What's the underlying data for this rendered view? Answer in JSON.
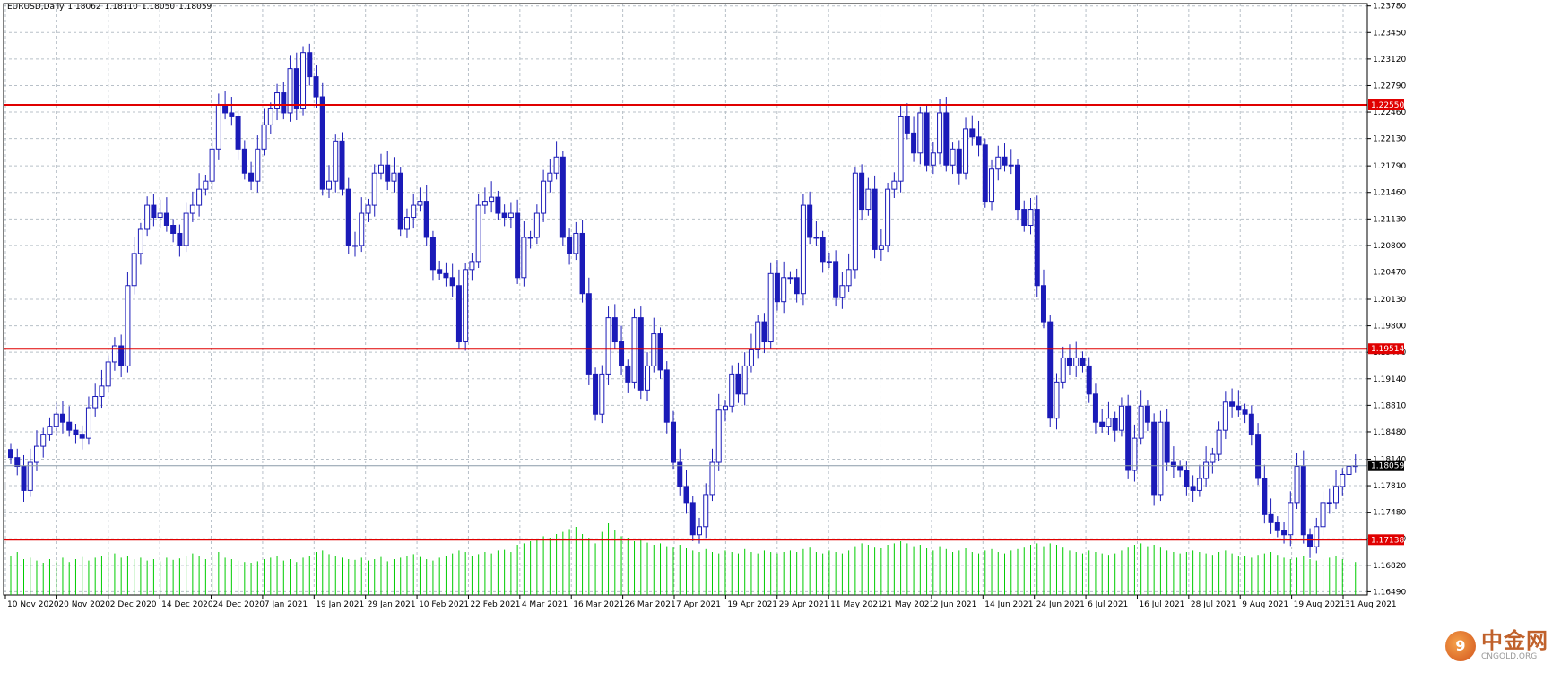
{
  "header": {
    "symbol": "EURUSD,Daily",
    "open": "1.18062",
    "high": "1.18110",
    "low": "1.18050",
    "close": "1.18059"
  },
  "watermark": {
    "logo_glyph": "9",
    "brand": "中金网",
    "url": "CNGOLD.ORG"
  },
  "colors": {
    "background": "#ffffff",
    "grid": "#b8c0c8",
    "candle": "#1b1bb8",
    "bear_candle": "#1b1bb8",
    "bull_candle_fill": "#ffffff",
    "volume": "#00cc00",
    "level_line": "#e00000",
    "level_label_bg": "#e00000",
    "price_label_bg": "#000000"
  },
  "chart_data": {
    "type": "candlestick",
    "title": "EURUSD,Daily",
    "y_axis_ticks": [
      "1.23780",
      "1.23450",
      "1.23120",
      "1.22790",
      "1.22460",
      "1.22130",
      "1.21790",
      "1.21460",
      "1.21130",
      "1.20800",
      "1.20470",
      "1.20130",
      "1.19800",
      "1.19470",
      "1.19140",
      "1.18810",
      "1.18480",
      "1.18140",
      "1.17810",
      "1.17480",
      "1.17150",
      "1.16820",
      "1.16490"
    ],
    "ylim": [
      1.1645,
      1.2381
    ],
    "x_axis_ticks": [
      "10 Nov 2020",
      "20 Nov 2020",
      "2 Dec 2020",
      "14 Dec 2020",
      "24 Dec 2020",
      "7 Jan 2021",
      "19 Jan 2021",
      "29 Jan 2021",
      "10 Feb 2021",
      "22 Feb 2021",
      "4 Mar 2021",
      "16 Mar 2021",
      "26 Mar 2021",
      "7 Apr 2021",
      "19 Apr 2021",
      "29 Apr 2021",
      "11 May 2021",
      "21 May 2021",
      "2 Jun 2021",
      "14 Jun 2021",
      "24 Jun 2021",
      "6 Jul 2021",
      "16 Jul 2021",
      "28 Jul 2021",
      "9 Aug 2021",
      "19 Aug 2021",
      "31 Aug 2021"
    ],
    "horizontal_levels": [
      {
        "label": "1.22550",
        "value": 1.2255
      },
      {
        "label": "1.19514",
        "value": 1.19514
      },
      {
        "label": "1.17138",
        "value": 1.17138
      }
    ],
    "current_price": {
      "label": "1.18059",
      "value": 1.18059
    },
    "grid": true,
    "closes": [
      1.1816,
      1.1805,
      1.1775,
      1.181,
      1.183,
      1.1845,
      1.1855,
      1.187,
      1.186,
      1.185,
      1.1845,
      1.184,
      1.1878,
      1.1892,
      1.1905,
      1.1935,
      1.1955,
      1.193,
      1.203,
      1.207,
      1.21,
      1.213,
      1.2115,
      1.212,
      1.2105,
      1.2095,
      1.208,
      1.212,
      1.213,
      1.215,
      1.216,
      1.22,
      1.2255,
      1.2245,
      1.224,
      1.22,
      1.217,
      1.216,
      1.22,
      1.223,
      1.225,
      1.227,
      1.2245,
      1.23,
      1.225,
      1.232,
      1.229,
      1.2265,
      1.215,
      1.216,
      1.221,
      1.215,
      1.208,
      1.208,
      1.212,
      1.213,
      1.217,
      1.218,
      1.216,
      1.217,
      1.21,
      1.2115,
      1.213,
      1.2135,
      1.209,
      1.205,
      1.2045,
      1.204,
      1.203,
      1.196,
      1.205,
      1.206,
      1.213,
      1.2135,
      1.214,
      1.212,
      1.2115,
      1.212,
      1.204,
      1.209,
      1.209,
      1.212,
      1.216,
      1.217,
      1.219,
      1.209,
      1.207,
      1.2095,
      1.202,
      1.192,
      1.187,
      1.192,
      1.199,
      1.196,
      1.193,
      1.191,
      1.199,
      1.19,
      1.193,
      1.197,
      1.1925,
      1.186,
      1.181,
      1.178,
      1.176,
      1.172,
      1.173,
      1.177,
      1.181,
      1.1875,
      1.188,
      1.192,
      1.1895,
      1.193,
      1.195,
      1.1985,
      1.196,
      1.2045,
      1.201,
      1.204,
      1.204,
      1.202,
      1.213,
      1.209,
      1.209,
      1.206,
      1.206,
      1.2015,
      1.203,
      1.205,
      1.217,
      1.2125,
      1.215,
      1.2075,
      1.208,
      1.215,
      1.216,
      1.224,
      1.222,
      1.2195,
      1.2245,
      1.218,
      1.2195,
      1.2245,
      1.218,
      1.22,
      1.217,
      1.2225,
      1.2215,
      1.2205,
      1.2135,
      1.2175,
      1.219,
      1.218,
      1.218,
      1.2125,
      1.2105,
      1.2125,
      1.203,
      1.1985,
      1.1865,
      1.191,
      1.194,
      1.193,
      1.194,
      1.193,
      1.1895,
      1.186,
      1.1855,
      1.1865,
      1.185,
      1.188,
      1.18,
      1.184,
      1.188,
      1.186,
      1.177,
      1.186,
      1.181,
      1.1805,
      1.18,
      1.178,
      1.1775,
      1.179,
      1.181,
      1.182,
      1.185,
      1.1885,
      1.188,
      1.1875,
      1.187,
      1.1845,
      1.179,
      1.1745,
      1.1735,
      1.1725,
      1.172,
      1.176,
      1.1805,
      1.172,
      1.1705,
      1.173,
      1.176,
      1.176,
      1.178,
      1.1795,
      1.1805,
      1.1806
    ],
    "volumes": [
      0.55,
      0.6,
      0.5,
      0.52,
      0.48,
      0.45,
      0.5,
      0.47,
      0.52,
      0.46,
      0.5,
      0.53,
      0.48,
      0.52,
      0.55,
      0.6,
      0.58,
      0.52,
      0.55,
      0.5,
      0.52,
      0.48,
      0.5,
      0.47,
      0.52,
      0.49,
      0.51,
      0.55,
      0.58,
      0.54,
      0.5,
      0.56,
      0.6,
      0.52,
      0.5,
      0.48,
      0.46,
      0.45,
      0.47,
      0.5,
      0.52,
      0.55,
      0.48,
      0.5,
      0.46,
      0.52,
      0.55,
      0.6,
      0.62,
      0.57,
      0.55,
      0.52,
      0.5,
      0.49,
      0.52,
      0.48,
      0.5,
      0.53,
      0.47,
      0.5,
      0.52,
      0.55,
      0.57,
      0.53,
      0.5,
      0.48,
      0.52,
      0.55,
      0.58,
      0.62,
      0.6,
      0.55,
      0.57,
      0.6,
      0.58,
      0.62,
      0.63,
      0.6,
      0.7,
      0.72,
      0.75,
      0.78,
      0.82,
      0.8,
      0.85,
      0.88,
      0.92,
      0.95,
      0.85,
      0.8,
      0.72,
      0.88,
      1.0,
      0.9,
      0.82,
      0.8,
      0.75,
      0.78,
      0.73,
      0.7,
      0.72,
      0.68,
      0.66,
      0.7,
      0.65,
      0.62,
      0.6,
      0.64,
      0.6,
      0.58,
      0.62,
      0.6,
      0.58,
      0.64,
      0.6,
      0.58,
      0.62,
      0.6,
      0.58,
      0.6,
      0.62,
      0.6,
      0.64,
      0.66,
      0.6,
      0.58,
      0.62,
      0.6,
      0.58,
      0.62,
      0.68,
      0.72,
      0.7,
      0.66,
      0.65,
      0.7,
      0.72,
      0.75,
      0.72,
      0.68,
      0.7,
      0.65,
      0.62,
      0.68,
      0.64,
      0.6,
      0.62,
      0.65,
      0.6,
      0.58,
      0.62,
      0.64,
      0.6,
      0.58,
      0.62,
      0.64,
      0.66,
      0.7,
      0.72,
      0.68,
      0.72,
      0.7,
      0.66,
      0.62,
      0.6,
      0.58,
      0.62,
      0.6,
      0.58,
      0.56,
      0.58,
      0.62,
      0.66,
      0.7,
      0.72,
      0.68,
      0.7,
      0.66,
      0.62,
      0.6,
      0.58,
      0.6,
      0.62,
      0.6,
      0.58,
      0.56,
      0.6,
      0.62,
      0.58,
      0.55,
      0.54,
      0.52,
      0.56,
      0.58,
      0.6,
      0.56,
      0.52,
      0.5,
      0.52,
      0.55,
      0.5,
      0.48,
      0.5,
      0.52,
      0.54,
      0.5,
      0.48,
      0.46
    ]
  }
}
